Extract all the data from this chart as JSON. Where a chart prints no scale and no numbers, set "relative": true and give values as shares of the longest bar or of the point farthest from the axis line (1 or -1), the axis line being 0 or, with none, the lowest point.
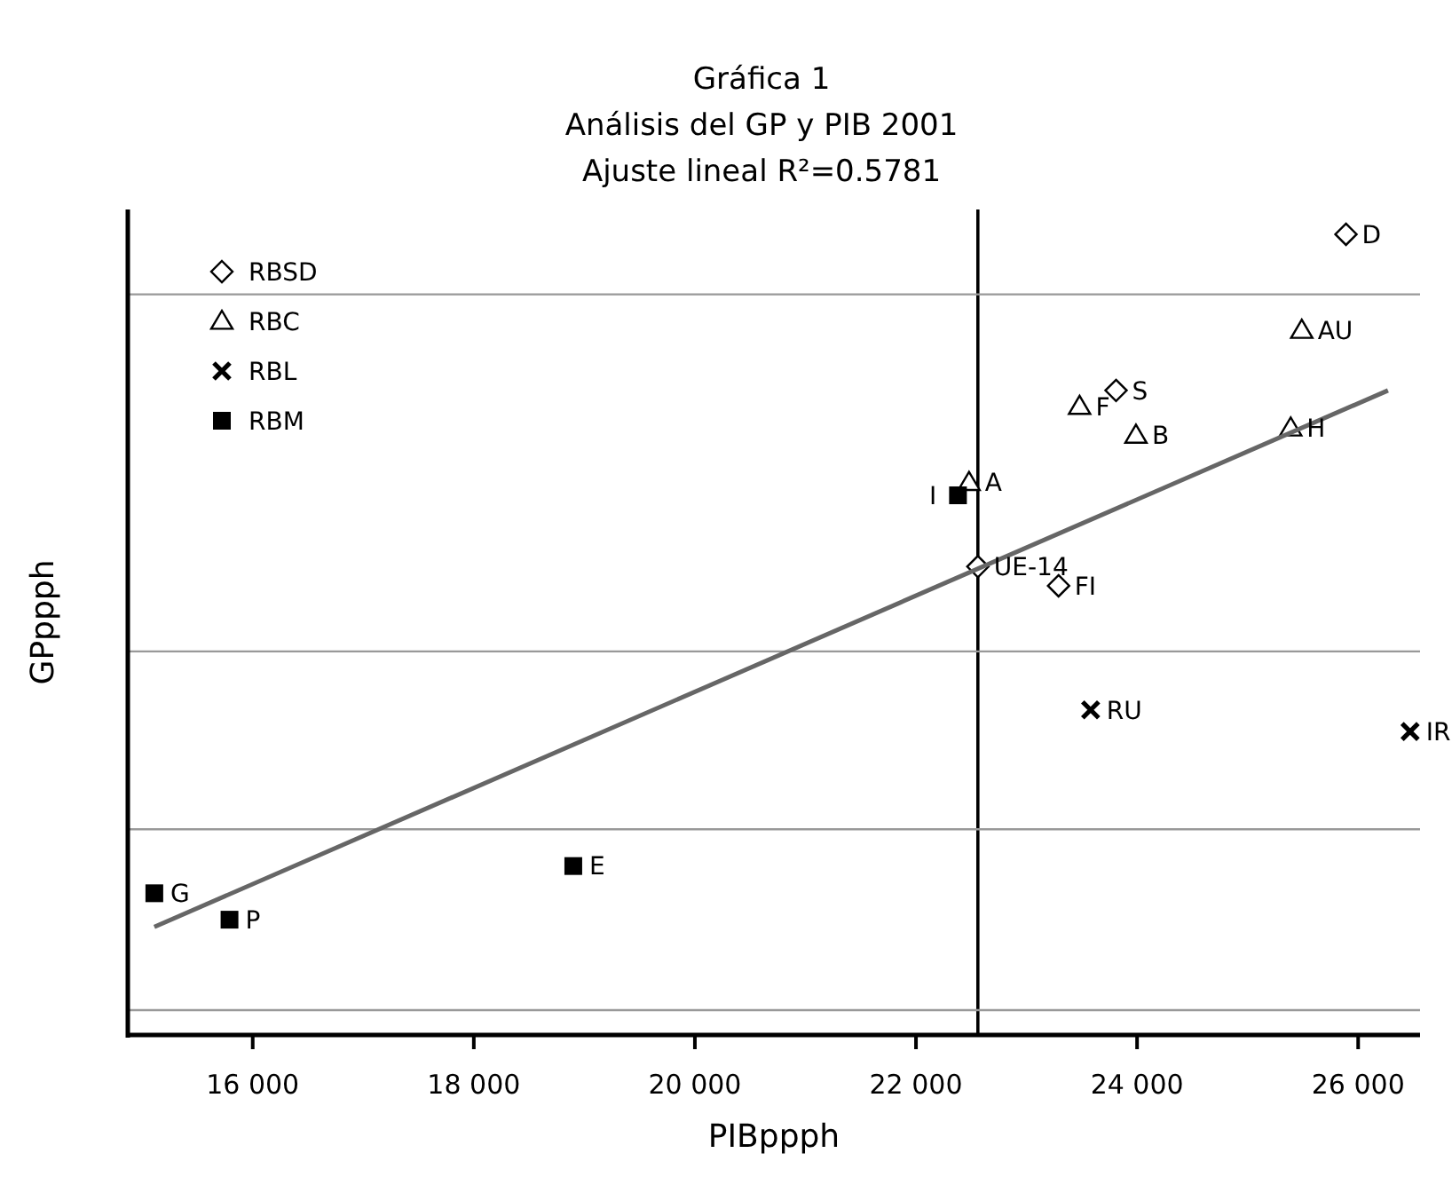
{
  "chart_data": {
    "type": "scatter",
    "title": "Gráfica 1",
    "subtitle": "Análisis del GP y PIB 2001\nAjuste lineal R²=0.5781",
    "xlabel": "PIBppph",
    "ylabel": "GPppph",
    "relative": true,
    "xlim": [
      14870,
      26560
    ],
    "xticks": [
      {
        "value": 16000,
        "label": "16 000"
      },
      {
        "value": 18000,
        "label": "18 000"
      },
      {
        "value": 20000,
        "label": "20 000"
      },
      {
        "value": 22000,
        "label": "22 000"
      },
      {
        "value": 24000,
        "label": "24 000"
      },
      {
        "value": 26000,
        "label": "26 000"
      }
    ],
    "legend": "top left",
    "series": [
      {
        "name": "RBSD",
        "marker": "diamond",
        "color": "#000000",
        "x": [
          25890,
          23810,
          22560,
          23290
        ],
        "values": [
          1.0,
          0.805,
          0.585,
          0.561
        ]
      },
      {
        "name": "RBC",
        "marker": "triangle",
        "color": "#000000",
        "x": [
          25490,
          23480,
          23990,
          25390,
          22480
        ],
        "values": [
          0.88,
          0.785,
          0.749,
          0.758,
          0.69
        ]
      },
      {
        "name": "RBL",
        "marker": "cross",
        "color": "#000000",
        "x": [
          23580,
          26470
        ],
        "values": [
          0.406,
          0.379
        ]
      },
      {
        "name": "RBM",
        "marker": "square",
        "color": "#000000",
        "x": [
          22380,
          15110,
          15790,
          18900
        ],
        "values": [
          0.674,
          0.177,
          0.144,
          0.211
        ]
      },
      {
        "type": "line",
        "marker": "none",
        "color": "#666666",
        "x": [
          15110,
          26270
        ],
        "values": [
          0.135,
          0.805
        ]
      }
    ],
    "ref_lines": [
      {
        "axis": "x",
        "value": 22560,
        "color": "#000000"
      },
      {
        "axis": "y",
        "value": 0.925,
        "color": "#999999"
      },
      {
        "axis": "y",
        "value": 0.479,
        "color": "#999999"
      },
      {
        "axis": "y",
        "value": 0.257,
        "color": "#999999"
      },
      {
        "axis": "y",
        "value": 0.031,
        "color": "#999999"
      }
    ],
    "annotations": [
      {
        "text": "D",
        "x": 25890,
        "y": 1.0
      },
      {
        "text": "AU",
        "x": 25490,
        "y": 0.88
      },
      {
        "text": "S",
        "x": 23810,
        "y": 0.805
      },
      {
        "text": "F",
        "x": 23480,
        "y": 0.785
      },
      {
        "text": "B",
        "x": 23990,
        "y": 0.749
      },
      {
        "text": "H",
        "x": 25390,
        "y": 0.758
      },
      {
        "text": "A",
        "x": 22480,
        "y": 0.69
      },
      {
        "text": "I",
        "x": 22380,
        "y": 0.674
      },
      {
        "text": "UE-14",
        "x": 22560,
        "y": 0.585
      },
      {
        "text": "FI",
        "x": 23290,
        "y": 0.561
      },
      {
        "text": "RU",
        "x": 23580,
        "y": 0.406
      },
      {
        "text": "IR",
        "x": 26470,
        "y": 0.379
      },
      {
        "text": "E",
        "x": 18900,
        "y": 0.211
      },
      {
        "text": "G",
        "x": 15110,
        "y": 0.177
      },
      {
        "text": "P",
        "x": 15790,
        "y": 0.144
      }
    ]
  }
}
